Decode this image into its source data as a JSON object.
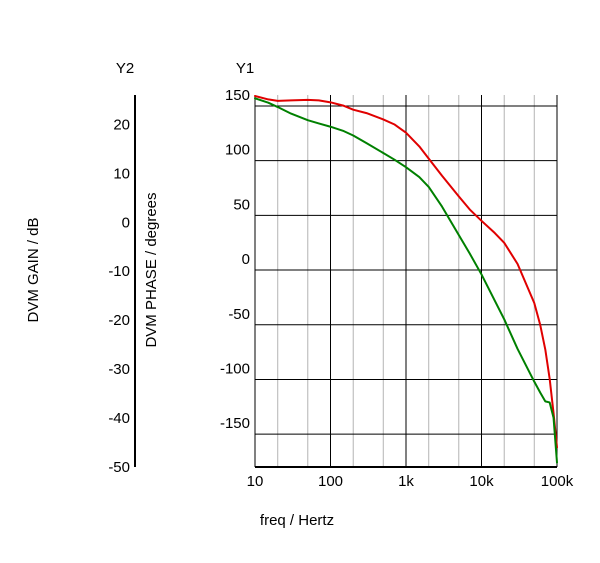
{
  "chart_data": {
    "type": "line",
    "x_scale": "log",
    "xlabel": "freq / Hertz",
    "xlim": [
      10,
      100000
    ],
    "x_ticks": [
      10,
      100,
      1000,
      10000,
      100000
    ],
    "x_tick_labels": [
      "10",
      "100",
      "1k",
      "10k",
      "100k"
    ],
    "axes": {
      "y1": {
        "name": "Y1",
        "label": "DVM PHASE / degrees",
        "ylim": [
          -180,
          160
        ],
        "ticks": [
          150,
          100,
          50,
          0,
          -50,
          -100,
          -150
        ],
        "tick_labels": [
          "150",
          "100",
          "50",
          "0",
          "-50",
          "-100",
          "-150"
        ]
      },
      "y2": {
        "name": "Y2",
        "label": "DVM GAIN / dB",
        "ylim": [
          -50,
          26
        ],
        "ticks": [
          20,
          10,
          0,
          -10,
          -20,
          -30,
          -40,
          -50
        ],
        "tick_labels": [
          "20",
          "10",
          "0",
          "-10",
          "-20",
          "-30",
          "-40",
          "-50"
        ]
      }
    },
    "grid": true,
    "series": [
      {
        "axis": "y2",
        "color": "#e00000",
        "x": [
          10,
          15,
          20,
          30,
          50,
          70,
          100,
          150,
          200,
          300,
          500,
          700,
          1000,
          1500,
          2000,
          3000,
          5000,
          7000,
          10000,
          15000,
          20000,
          30000,
          50000,
          60000,
          70000,
          80000,
          90000,
          100000
        ],
        "y": [
          25.8,
          25.1,
          24.8,
          24.9,
          25.0,
          24.9,
          24.5,
          23.8,
          23.0,
          22.3,
          21.0,
          20.0,
          18.3,
          15.5,
          13.0,
          9.5,
          5.3,
          2.6,
          0.3,
          -2.2,
          -4.2,
          -8.5,
          -16.5,
          -21.0,
          -26.0,
          -32.0,
          -39.0,
          -46.0
        ]
      },
      {
        "axis": "y1",
        "color": "#008000",
        "x": [
          10,
          15,
          20,
          30,
          50,
          70,
          100,
          150,
          200,
          300,
          500,
          700,
          1000,
          1500,
          2000,
          3000,
          5000,
          7000,
          10000,
          15000,
          20000,
          30000,
          50000,
          60000,
          70000,
          80000,
          90000,
          100000
        ],
        "y": [
          157,
          153,
          149,
          143,
          137,
          134,
          131,
          127,
          123,
          116,
          107,
          101,
          94,
          85,
          76,
          58,
          32,
          15,
          -4,
          -28,
          -45,
          -72,
          -102,
          -112,
          -120,
          -121,
          -135,
          -176
        ]
      }
    ]
  }
}
